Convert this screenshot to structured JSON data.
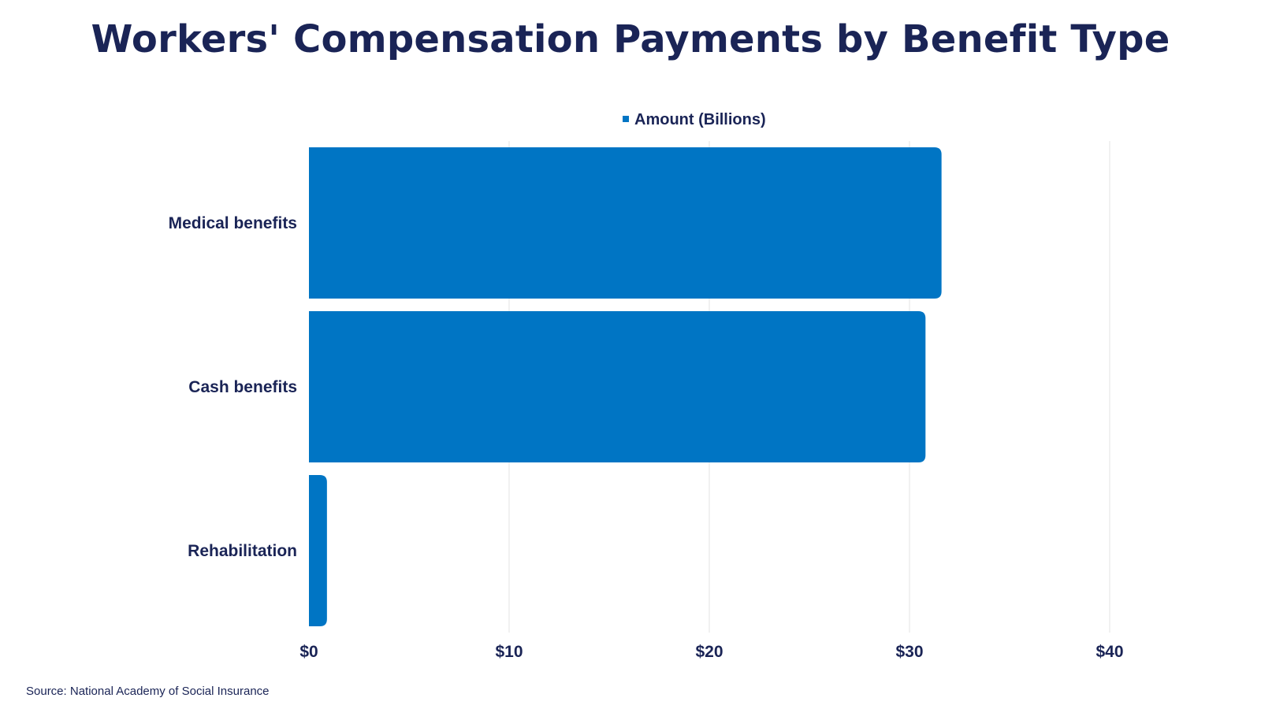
{
  "chart_data": {
    "type": "bar",
    "orientation": "horizontal",
    "title": "Workers' Compensation Payments by Benefit Type",
    "categories": [
      "Medical benefits",
      "Cash benefits",
      "Rehabilitation"
    ],
    "series": [
      {
        "name": "Amount (Billions)",
        "values": [
          31.6,
          30.8,
          0.9
        ]
      }
    ],
    "xlim": [
      0,
      40
    ],
    "x_ticks": [
      0,
      10,
      20,
      30,
      40
    ],
    "x_tick_labels": [
      "$0",
      "$10",
      "$20",
      "$30",
      "$40"
    ],
    "xlabel": "",
    "ylabel": "",
    "grid": "vertical",
    "legend_position": "top-center",
    "colors": {
      "bar": "#0075c4",
      "text": "#1a2456",
      "grid": "#e3e3e3"
    }
  },
  "source": "Source: National Academy of Social Insurance"
}
